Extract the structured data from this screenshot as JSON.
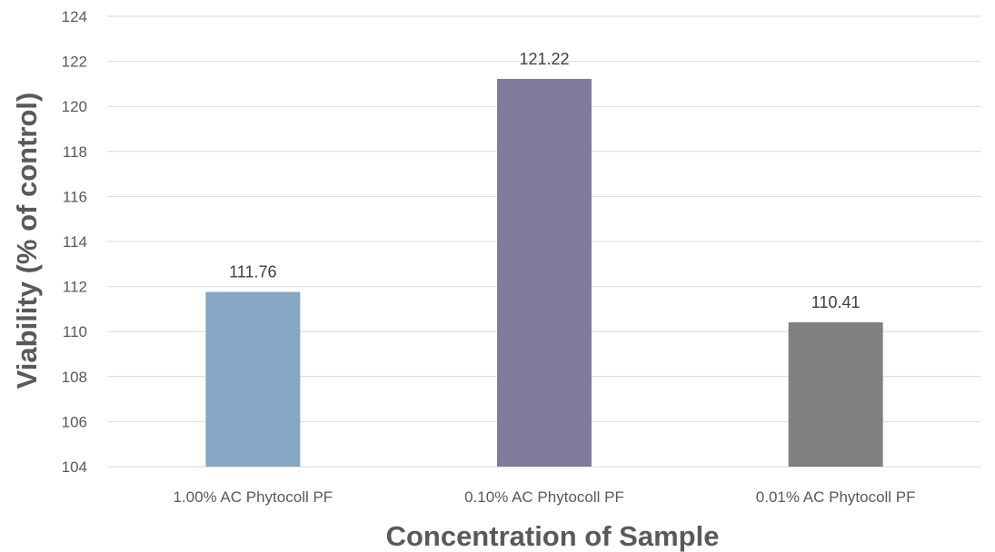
{
  "chart_data": {
    "type": "bar",
    "categories": [
      "1.00% AC Phytocoll PF",
      "0.10% AC Phytocoll PF",
      "0.01% AC Phytocoll PF"
    ],
    "values": [
      111.76,
      121.22,
      110.41
    ],
    "data_labels": [
      "111.76",
      "121.22",
      "110.41"
    ],
    "colors": [
      "#87a6c4",
      "#7f7b9b",
      "#808080"
    ],
    "xlabel": "Concentration of Sample",
    "ylabel": "Viability (% of control)",
    "ylim": [
      104,
      124
    ],
    "y_ticks": [
      104,
      106,
      108,
      110,
      112,
      114,
      116,
      118,
      120,
      122,
      124
    ],
    "grid": true,
    "legend": "none"
  }
}
